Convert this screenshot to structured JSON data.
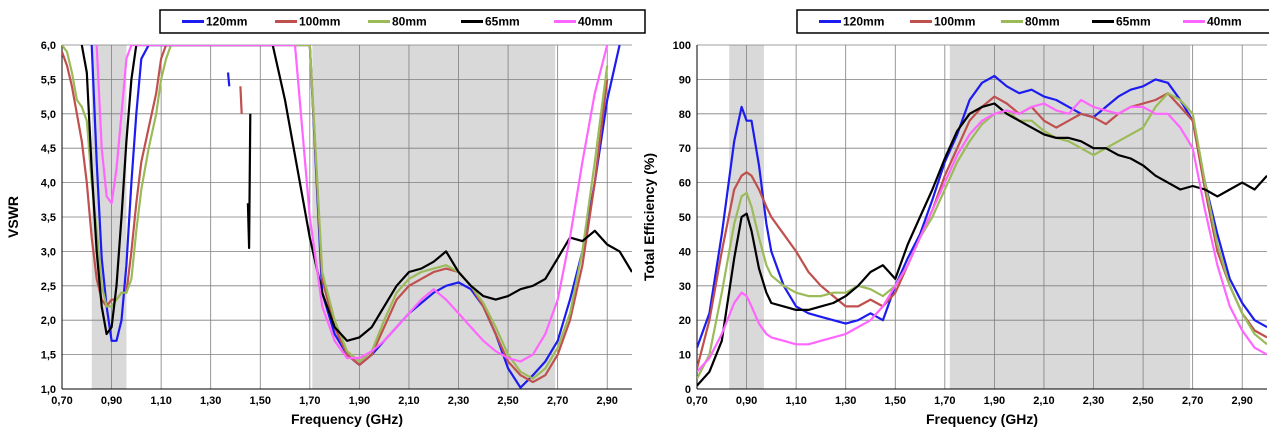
{
  "legend_series_names": [
    "120mm",
    "100mm",
    "80mm",
    "65mm",
    "40mm"
  ],
  "colors": {
    "120mm": "#1c1cf0",
    "100mm": "#c0504d",
    "80mm": "#9bbb59",
    "65mm": "#000000",
    "40mm": "#ff66ff",
    "band_fill": "#d9d9d9",
    "grid": "#7f7f7f"
  },
  "chart_data": [
    {
      "type": "line",
      "xlabel": "Frequency (GHz)",
      "ylabel": "VSWR",
      "xlim": [
        0.7,
        3.0
      ],
      "ylim": [
        1.0,
        6.0
      ],
      "x_ticks": [
        "0,70",
        "0,90",
        "1,10",
        "1,30",
        "1,50",
        "1,70",
        "1,90",
        "2,10",
        "2,30",
        "2,50",
        "2,70",
        "2,90"
      ],
      "y_ticks": [
        "1,0",
        "1,5",
        "2,0",
        "2,5",
        "3,0",
        "3,5",
        "4,0",
        "4,5",
        "5,0",
        "5,5",
        "6,0"
      ],
      "grid": true,
      "legend_position": "top",
      "shaded_bands": [
        [
          0.82,
          0.96
        ],
        [
          1.71,
          2.69
        ]
      ],
      "series": [
        {
          "name": "120mm",
          "x": [
            0.82,
            0.84,
            0.86,
            0.88,
            0.9,
            0.92,
            0.94,
            0.96,
            0.98,
            1.0,
            1.02,
            1.05,
            1.7,
            1.75,
            1.8,
            1.85,
            1.9,
            1.95,
            2.0,
            2.05,
            2.1,
            2.15,
            2.2,
            2.25,
            2.3,
            2.35,
            2.4,
            2.45,
            2.5,
            2.55,
            2.6,
            2.65,
            2.7,
            2.75,
            2.8,
            2.85,
            2.9,
            2.95
          ],
          "y": [
            6.0,
            4.3,
            2.9,
            2.2,
            1.7,
            1.7,
            2.0,
            2.8,
            4.0,
            5.0,
            5.8,
            6.0,
            6.0,
            2.4,
            1.8,
            1.5,
            1.35,
            1.5,
            1.7,
            1.9,
            2.1,
            2.25,
            2.4,
            2.5,
            2.55,
            2.45,
            2.2,
            1.8,
            1.3,
            1.02,
            1.2,
            1.4,
            1.7,
            2.3,
            3.0,
            4.0,
            5.2,
            6.0
          ]
        },
        {
          "name": "100mm",
          "x": [
            0.7,
            0.72,
            0.74,
            0.76,
            0.78,
            0.8,
            0.82,
            0.84,
            0.86,
            0.88,
            0.9,
            0.92,
            0.94,
            0.96,
            0.98,
            1.0,
            1.02,
            1.05,
            1.08,
            1.1,
            1.12,
            1.7,
            1.75,
            1.8,
            1.85,
            1.9,
            1.95,
            2.0,
            2.05,
            2.1,
            2.15,
            2.2,
            2.25,
            2.3,
            2.35,
            2.4,
            2.45,
            2.5,
            2.55,
            2.6,
            2.65,
            2.7,
            2.75,
            2.8,
            2.85,
            2.9
          ],
          "y": [
            5.9,
            5.7,
            5.4,
            5.0,
            4.6,
            4.0,
            3.2,
            2.6,
            2.3,
            2.2,
            2.3,
            2.3,
            2.4,
            2.4,
            3.0,
            3.7,
            4.3,
            4.8,
            5.3,
            5.8,
            6.0,
            6.0,
            2.6,
            1.9,
            1.5,
            1.35,
            1.5,
            1.9,
            2.3,
            2.5,
            2.6,
            2.7,
            2.75,
            2.7,
            2.5,
            2.2,
            1.8,
            1.4,
            1.2,
            1.1,
            1.2,
            1.5,
            2.0,
            2.8,
            4.0,
            5.5
          ]
        },
        {
          "name": "80mm",
          "x": [
            0.7,
            0.72,
            0.74,
            0.76,
            0.78,
            0.8,
            0.82,
            0.84,
            0.86,
            0.88,
            0.9,
            0.92,
            0.94,
            0.96,
            0.98,
            1.0,
            1.02,
            1.05,
            1.08,
            1.1,
            1.12,
            1.14,
            1.7,
            1.75,
            1.8,
            1.85,
            1.9,
            1.95,
            2.0,
            2.05,
            2.1,
            2.15,
            2.2,
            2.25,
            2.3,
            2.35,
            2.4,
            2.45,
            2.5,
            2.55,
            2.6,
            2.65,
            2.7,
            2.75,
            2.8,
            2.85,
            2.9
          ],
          "y": [
            6.0,
            5.9,
            5.6,
            5.2,
            5.1,
            4.9,
            4.0,
            3.3,
            2.5,
            2.2,
            2.2,
            2.3,
            2.4,
            2.4,
            2.6,
            3.3,
            3.9,
            4.5,
            5.0,
            5.5,
            5.8,
            6.0,
            6.0,
            2.7,
            2.0,
            1.55,
            1.4,
            1.55,
            2.0,
            2.4,
            2.6,
            2.7,
            2.75,
            2.8,
            2.7,
            2.5,
            2.25,
            1.9,
            1.5,
            1.25,
            1.15,
            1.3,
            1.6,
            2.1,
            3.0,
            4.3,
            5.7
          ]
        },
        {
          "name": "65mm",
          "x": [
            0.78,
            0.8,
            0.82,
            0.84,
            0.86,
            0.88,
            0.9,
            0.92,
            0.94,
            0.96,
            0.98,
            1.0,
            1.45,
            1.55,
            1.6,
            1.65,
            1.7,
            1.75,
            1.8,
            1.85,
            1.9,
            1.95,
            2.0,
            2.05,
            2.1,
            2.15,
            2.2,
            2.25,
            2.3,
            2.35,
            2.4,
            2.45,
            2.5,
            2.55,
            2.6,
            2.65,
            2.7,
            2.75,
            2.8,
            2.85,
            2.9,
            2.95,
            3.0
          ],
          "y": [
            6.0,
            5.6,
            4.2,
            3.0,
            2.2,
            1.8,
            1.9,
            2.5,
            3.5,
            4.6,
            5.5,
            6.0,
            6.0,
            6.0,
            5.2,
            4.2,
            3.2,
            2.4,
            1.9,
            1.7,
            1.75,
            1.9,
            2.2,
            2.5,
            2.7,
            2.75,
            2.85,
            3.0,
            2.7,
            2.5,
            2.35,
            2.3,
            2.35,
            2.45,
            2.5,
            2.6,
            2.9,
            3.2,
            3.15,
            3.3,
            3.1,
            3.0,
            2.7
          ]
        },
        {
          "name": "40mm",
          "x": [
            0.84,
            0.86,
            0.88,
            0.9,
            0.92,
            0.94,
            0.96,
            0.98,
            1.64,
            1.7,
            1.75,
            1.8,
            1.85,
            1.9,
            1.95,
            2.0,
            2.05,
            2.1,
            2.15,
            2.2,
            2.25,
            2.3,
            2.35,
            2.4,
            2.45,
            2.5,
            2.55,
            2.6,
            2.65,
            2.7,
            2.75,
            2.8,
            2.85,
            2.9
          ],
          "y": [
            6.0,
            4.5,
            3.8,
            3.7,
            4.2,
            5.0,
            5.8,
            6.0,
            6.0,
            3.5,
            2.2,
            1.7,
            1.45,
            1.45,
            1.55,
            1.7,
            1.9,
            2.1,
            2.3,
            2.45,
            2.3,
            2.1,
            1.9,
            1.7,
            1.55,
            1.45,
            1.4,
            1.5,
            1.8,
            2.3,
            3.2,
            4.3,
            5.3,
            6.0
          ]
        }
      ],
      "extra_series": [
        {
          "name": "65mm",
          "x": [
            1.45,
            1.455,
            1.46
          ],
          "y": [
            3.7,
            3.05,
            5.0
          ]
        },
        {
          "name": "100mm",
          "x": [
            1.42,
            1.425
          ],
          "y": [
            5.4,
            5.0
          ]
        },
        {
          "name": "120mm",
          "x": [
            1.37,
            1.375
          ],
          "y": [
            5.6,
            5.4
          ]
        }
      ]
    },
    {
      "type": "line",
      "xlabel": "Frequency (GHz)",
      "ylabel": "Total  Efficiency (%)",
      "xlim": [
        0.7,
        3.0
      ],
      "ylim": [
        0,
        100
      ],
      "x_ticks": [
        "0,70",
        "0,90",
        "1,10",
        "1,30",
        "1,50",
        "1,70",
        "1,90",
        "2,10",
        "2,30",
        "2,50",
        "2,70",
        "2,90"
      ],
      "y_ticks": [
        "0",
        "10",
        "20",
        "30",
        "40",
        "50",
        "60",
        "70",
        "80",
        "90",
        "100"
      ],
      "grid": true,
      "legend_position": "top",
      "shaded_bands": [
        [
          0.83,
          0.97
        ],
        [
          1.72,
          2.69
        ]
      ],
      "series": [
        {
          "name": "120mm",
          "x": [
            0.7,
            0.75,
            0.8,
            0.85,
            0.88,
            0.9,
            0.92,
            0.95,
            0.98,
            1.0,
            1.05,
            1.1,
            1.15,
            1.2,
            1.25,
            1.3,
            1.35,
            1.4,
            1.45,
            1.5,
            1.55,
            1.6,
            1.65,
            1.7,
            1.75,
            1.8,
            1.85,
            1.9,
            1.95,
            2.0,
            2.05,
            2.1,
            2.15,
            2.2,
            2.25,
            2.3,
            2.35,
            2.4,
            2.45,
            2.5,
            2.55,
            2.6,
            2.65,
            2.7,
            2.75,
            2.8,
            2.85,
            2.9,
            2.95,
            3.0
          ],
          "y": [
            12,
            22,
            45,
            72,
            82,
            78,
            78,
            65,
            48,
            40,
            30,
            24,
            22,
            21,
            20,
            19,
            20,
            22,
            20,
            30,
            38,
            45,
            55,
            66,
            74,
            84,
            89,
            91,
            88,
            86,
            87,
            85,
            84,
            82,
            80,
            79,
            82,
            85,
            87,
            88,
            90,
            89,
            84,
            78,
            60,
            45,
            32,
            25,
            20,
            18
          ]
        },
        {
          "name": "100mm",
          "x": [
            0.7,
            0.75,
            0.8,
            0.85,
            0.88,
            0.9,
            0.92,
            0.95,
            0.98,
            1.0,
            1.05,
            1.1,
            1.15,
            1.2,
            1.25,
            1.3,
            1.35,
            1.4,
            1.45,
            1.5,
            1.55,
            1.6,
            1.65,
            1.7,
            1.75,
            1.8,
            1.85,
            1.9,
            1.95,
            2.0,
            2.05,
            2.1,
            2.15,
            2.2,
            2.25,
            2.3,
            2.35,
            2.4,
            2.45,
            2.5,
            2.55,
            2.6,
            2.65,
            2.7,
            2.75,
            2.8,
            2.85,
            2.9,
            2.95,
            3.0
          ],
          "y": [
            6,
            20,
            40,
            58,
            62,
            63,
            62,
            58,
            53,
            50,
            45,
            40,
            34,
            30,
            27,
            24,
            24,
            26,
            24,
            28,
            36,
            44,
            52,
            62,
            70,
            78,
            82,
            85,
            83,
            80,
            82,
            78,
            76,
            78,
            80,
            79,
            77,
            80,
            82,
            83,
            84,
            86,
            82,
            78,
            58,
            40,
            30,
            22,
            17,
            15
          ]
        },
        {
          "name": "80mm",
          "x": [
            0.7,
            0.75,
            0.8,
            0.85,
            0.88,
            0.9,
            0.92,
            0.95,
            0.98,
            1.0,
            1.05,
            1.1,
            1.15,
            1.2,
            1.25,
            1.3,
            1.35,
            1.4,
            1.45,
            1.5,
            1.55,
            1.6,
            1.65,
            1.7,
            1.75,
            1.8,
            1.85,
            1.9,
            1.95,
            2.0,
            2.05,
            2.1,
            2.15,
            2.2,
            2.25,
            2.3,
            2.35,
            2.4,
            2.45,
            2.5,
            2.55,
            2.6,
            2.65,
            2.7,
            2.75,
            2.8,
            2.85,
            2.9,
            2.95,
            3.0
          ],
          "y": [
            3,
            10,
            28,
            48,
            56,
            57,
            53,
            44,
            36,
            33,
            30,
            28,
            27,
            27,
            28,
            28,
            30,
            29,
            27,
            30,
            36,
            44,
            50,
            58,
            66,
            72,
            77,
            80,
            81,
            78,
            78,
            75,
            73,
            72,
            70,
            68,
            70,
            72,
            74,
            76,
            82,
            86,
            84,
            80,
            60,
            42,
            30,
            22,
            16,
            13
          ]
        },
        {
          "name": "65mm",
          "x": [
            0.7,
            0.75,
            0.8,
            0.85,
            0.88,
            0.9,
            0.92,
            0.95,
            0.98,
            1.0,
            1.05,
            1.1,
            1.15,
            1.2,
            1.25,
            1.3,
            1.35,
            1.4,
            1.45,
            1.5,
            1.55,
            1.6,
            1.65,
            1.7,
            1.75,
            1.8,
            1.85,
            1.9,
            1.95,
            2.0,
            2.05,
            2.1,
            2.15,
            2.2,
            2.25,
            2.3,
            2.35,
            2.4,
            2.45,
            2.5,
            2.55,
            2.6,
            2.65,
            2.7,
            2.75,
            2.8,
            2.85,
            2.9,
            2.95,
            3.0
          ],
          "y": [
            1,
            5,
            14,
            38,
            50,
            51,
            46,
            35,
            28,
            25,
            24,
            23,
            23,
            24,
            25,
            27,
            30,
            34,
            36,
            32,
            42,
            50,
            58,
            67,
            75,
            80,
            82,
            83,
            80,
            78,
            76,
            74,
            73,
            73,
            72,
            70,
            70,
            68,
            67,
            65,
            62,
            60,
            58,
            59,
            58,
            56,
            58,
            60,
            58,
            62
          ]
        },
        {
          "name": "40mm",
          "x": [
            0.7,
            0.75,
            0.8,
            0.85,
            0.88,
            0.9,
            0.92,
            0.95,
            0.98,
            1.0,
            1.05,
            1.1,
            1.15,
            1.2,
            1.25,
            1.3,
            1.35,
            1.4,
            1.45,
            1.5,
            1.55,
            1.6,
            1.65,
            1.7,
            1.75,
            1.8,
            1.85,
            1.9,
            1.95,
            2.0,
            2.05,
            2.1,
            2.15,
            2.2,
            2.25,
            2.3,
            2.35,
            2.4,
            2.45,
            2.5,
            2.55,
            2.6,
            2.65,
            2.7,
            2.75,
            2.8,
            2.85,
            2.9,
            2.95,
            3.0
          ],
          "y": [
            5,
            9,
            16,
            25,
            28,
            27,
            24,
            19,
            16,
            15,
            14,
            13,
            13,
            14,
            15,
            16,
            18,
            20,
            24,
            30,
            36,
            44,
            52,
            60,
            68,
            74,
            78,
            80,
            81,
            80,
            82,
            83,
            81,
            80,
            84,
            82,
            81,
            80,
            82,
            82,
            80,
            80,
            76,
            70,
            52,
            36,
            24,
            17,
            12,
            10
          ]
        }
      ]
    }
  ]
}
